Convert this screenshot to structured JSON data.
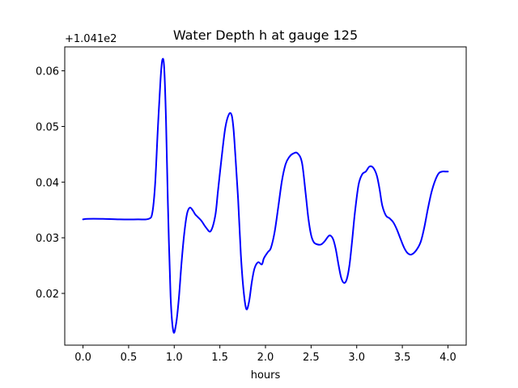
{
  "chart_data": {
    "type": "line",
    "title": "Water Depth h at gauge 125",
    "xlabel": "hours",
    "ylabel": "",
    "offset_text": "+1.041e2",
    "xlim": [
      -0.2,
      4.2
    ],
    "ylim": [
      0.0107,
      0.0643
    ],
    "x_ticks": [
      0.0,
      0.5,
      1.0,
      1.5,
      2.0,
      2.5,
      3.0,
      3.5,
      4.0
    ],
    "x_tick_labels": [
      "0.0",
      "0.5",
      "1.0",
      "1.5",
      "2.0",
      "2.5",
      "3.0",
      "3.5",
      "4.0"
    ],
    "y_ticks": [
      0.02,
      0.03,
      0.04,
      0.05,
      0.06
    ],
    "y_tick_labels": [
      "0.02",
      "0.03",
      "0.04",
      "0.05",
      "0.06"
    ],
    "grid": false,
    "legend": "none",
    "series": [
      {
        "color": "#0000ff",
        "x": [
          0.0,
          0.05,
          0.2,
          0.4,
          0.6,
          0.72,
          0.76,
          0.79,
          0.82,
          0.85,
          0.87,
          0.89,
          0.91,
          0.93,
          0.96,
          0.99,
          1.02,
          1.05,
          1.08,
          1.11,
          1.14,
          1.17,
          1.2,
          1.23,
          1.26,
          1.3,
          1.35,
          1.4,
          1.45,
          1.48,
          1.52,
          1.56,
          1.6,
          1.63,
          1.65,
          1.67,
          1.7,
          1.73,
          1.76,
          1.79,
          1.82,
          1.85,
          1.88,
          1.92,
          1.96,
          1.98,
          2.0,
          2.03,
          2.06,
          2.1,
          2.14,
          2.18,
          2.22,
          2.26,
          2.3,
          2.35,
          2.4,
          2.44,
          2.47,
          2.5,
          2.53,
          2.57,
          2.61,
          2.65,
          2.7,
          2.74,
          2.77,
          2.8,
          2.83,
          2.86,
          2.89,
          2.92,
          2.95,
          2.98,
          3.02,
          3.06,
          3.1,
          3.14,
          3.18,
          3.22,
          3.25,
          3.28,
          3.32,
          3.36,
          3.4,
          3.44,
          3.48,
          3.52,
          3.56,
          3.6,
          3.65,
          3.7,
          3.74,
          3.78,
          3.82,
          3.86,
          3.9,
          3.94,
          3.97,
          4.0
        ],
        "y": [
          0.0333,
          0.0334,
          0.0334,
          0.0333,
          0.0333,
          0.0334,
          0.0345,
          0.0395,
          0.0495,
          0.0585,
          0.062,
          0.0605,
          0.051,
          0.0365,
          0.0195,
          0.0132,
          0.0145,
          0.019,
          0.0255,
          0.0308,
          0.0343,
          0.0354,
          0.035,
          0.0342,
          0.0337,
          0.033,
          0.0318,
          0.0312,
          0.034,
          0.0385,
          0.0445,
          0.0498,
          0.0522,
          0.052,
          0.0495,
          0.0448,
          0.037,
          0.027,
          0.0205,
          0.0172,
          0.0185,
          0.022,
          0.0245,
          0.0256,
          0.0252,
          0.0262,
          0.0268,
          0.0275,
          0.0282,
          0.031,
          0.0355,
          0.0402,
          0.0432,
          0.0445,
          0.0451,
          0.0452,
          0.0435,
          0.038,
          0.0335,
          0.0305,
          0.0292,
          0.0288,
          0.0288,
          0.0294,
          0.0304,
          0.0298,
          0.028,
          0.0252,
          0.0228,
          0.0219,
          0.0225,
          0.025,
          0.0295,
          0.0345,
          0.0395,
          0.0414,
          0.0419,
          0.0428,
          0.0426,
          0.0412,
          0.0388,
          0.0358,
          0.034,
          0.0335,
          0.0328,
          0.0315,
          0.0298,
          0.0282,
          0.0272,
          0.027,
          0.0277,
          0.0292,
          0.0318,
          0.0352,
          0.0382,
          0.0403,
          0.0416,
          0.0419,
          0.0419,
          0.0419
        ]
      }
    ]
  }
}
